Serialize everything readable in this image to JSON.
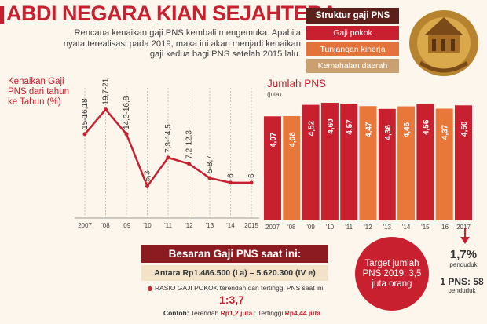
{
  "title": "ABDI NEGARA KIAN SEJAHTERA",
  "intro": "Rencana kenaikan gaji PNS kembali mengemuka. Apabila nyata terealisasi pada 2019, maka ini akan menjadi kenaikan gaji kedua bagi PNS setelah 2015 lalu.",
  "struktur": {
    "title": "Struktur gaji PNS",
    "items": [
      {
        "label": "Gaji pokok",
        "color": "#c8202f"
      },
      {
        "label": "Tunjangan kinerja",
        "color": "#e3733b"
      },
      {
        "label": "Kemahalan daerah",
        "color": "#caa070"
      }
    ]
  },
  "colors": {
    "red": "#c8202f",
    "orange": "#e8773a",
    "line": "#c8202f",
    "dark": "#8b1b20"
  },
  "kenaikan_label": "Kenaikan Gaji PNS dari tahun ke Tahun (%)",
  "jumlah_title": "Jumlah PNS",
  "jumlah_unit": "(juta)",
  "chart_data": [
    {
      "type": "line",
      "title": "Kenaikan Gaji PNS dari tahun ke Tahun (%)",
      "categories": [
        "2007",
        "'08",
        "'09",
        "'10",
        "'11",
        "'12",
        "'13",
        "'14",
        "2015"
      ],
      "labels": [
        "15-16,18",
        "19,7-21",
        "14,3-16,8",
        "5,3",
        "7,3-14,5",
        "7,2-12,3",
        "5-8,7",
        "6",
        "6"
      ],
      "values": [
        15.5,
        20.3,
        15.5,
        5.3,
        10.9,
        9.7,
        6.9,
        6,
        6
      ],
      "grid": true
    },
    {
      "type": "bar",
      "title": "Jumlah PNS",
      "ylabel": "(juta)",
      "categories": [
        "2007",
        "'08",
        "'09",
        "'10",
        "'11",
        "'12",
        "'13",
        "'14",
        "'15",
        "'16",
        "2017"
      ],
      "values": [
        4.07,
        4.08,
        4.52,
        4.6,
        4.57,
        4.47,
        4.36,
        4.46,
        4.56,
        4.37,
        4.5
      ],
      "labels": [
        "4,07",
        "4,08",
        "4,52",
        "4,60",
        "4,57",
        "4,47",
        "4,36",
        "4,46",
        "4,56",
        "4,37",
        "4,50"
      ],
      "colors": [
        "#c8202f",
        "#e8773a",
        "#c8202f",
        "#c8202f",
        "#c8202f",
        "#e8773a",
        "#c8202f",
        "#e8773a",
        "#c8202f",
        "#e8773a",
        "#c8202f"
      ]
    }
  ],
  "besaran": {
    "title": "Besaran Gaji PNS saat ini:",
    "range": "Antara Rp1.486.500 (I a) – 5.620.300 (IV e)"
  },
  "rasio": {
    "label": "RASIO GAJI POKOK terendah dan tertinggi PNS saat ini",
    "value": "1:3,7",
    "contoh_prefix": "Contoh:",
    "terendah_label": "Terendah",
    "terendah_value": "Rp1,2 juta",
    "tertinggi_label": "Tertinggi",
    "tertinggi_value": "Rp4,44 juta"
  },
  "target": "Target jumlah PNS 2019: 3,5 juta orang",
  "stat1": {
    "value": "1,7%",
    "unit": "penduduk"
  },
  "stat2": {
    "value": "1 PNS: 58",
    "unit": "penduduk"
  }
}
